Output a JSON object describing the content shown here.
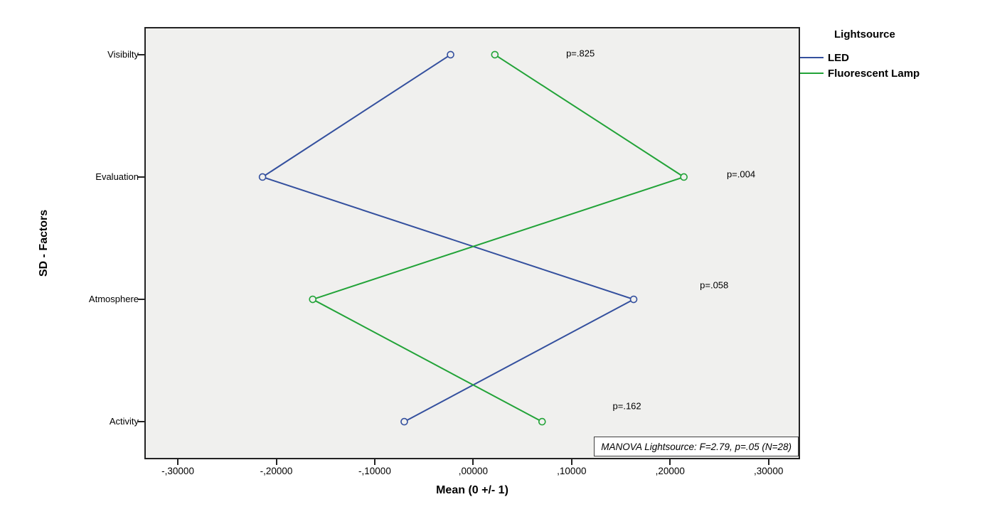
{
  "chart_data": {
    "type": "line",
    "title": "",
    "xlabel": "Mean (0 +/- 1)",
    "ylabel": "SD - Factors",
    "categories": [
      "Visibilty",
      "Evaluation",
      "Atmosphere",
      "Activity"
    ],
    "categories_axis": "y",
    "xlim": [
      -0.334,
      0.332
    ],
    "x_ticks": [
      {
        "value": -0.3,
        "label": "-,30000"
      },
      {
        "value": -0.2,
        "label": "-,20000"
      },
      {
        "value": -0.1,
        "label": "-,10000"
      },
      {
        "value": 0.0,
        "label": ",00000"
      },
      {
        "value": 0.1,
        "label": ",10000"
      },
      {
        "value": 0.2,
        "label": ",20000"
      },
      {
        "value": 0.3,
        "label": ",30000"
      }
    ],
    "series": [
      {
        "name": "LED",
        "color": "#34509e",
        "values": [
          -0.023,
          -0.214,
          0.163,
          -0.07
        ]
      },
      {
        "name": "Fluorescent Lamp",
        "color": "#22a338",
        "values": [
          0.022,
          0.214,
          -0.163,
          0.07
        ]
      }
    ],
    "annotations": [
      {
        "text": "p=.825",
        "fx": 0.665,
        "fy": 0.061
      },
      {
        "text": "p=.004",
        "fx": 0.91,
        "fy": 0.34
      },
      {
        "text": "p=.058",
        "fx": 0.869,
        "fy": 0.597
      },
      {
        "text": "p=.162",
        "fx": 0.736,
        "fy": 0.877
      }
    ],
    "note": "MANOVA Lightsource: F=2.79, p=.05 (N=28)",
    "legend": {
      "title": "Lightsource",
      "position": "right-top"
    },
    "grid": false,
    "plot_background": "#f0f0ee",
    "marker": "open-circle",
    "layout": {
      "pad_top_frac": 0.064,
      "pad_bottom_frac": 0.087
    }
  }
}
